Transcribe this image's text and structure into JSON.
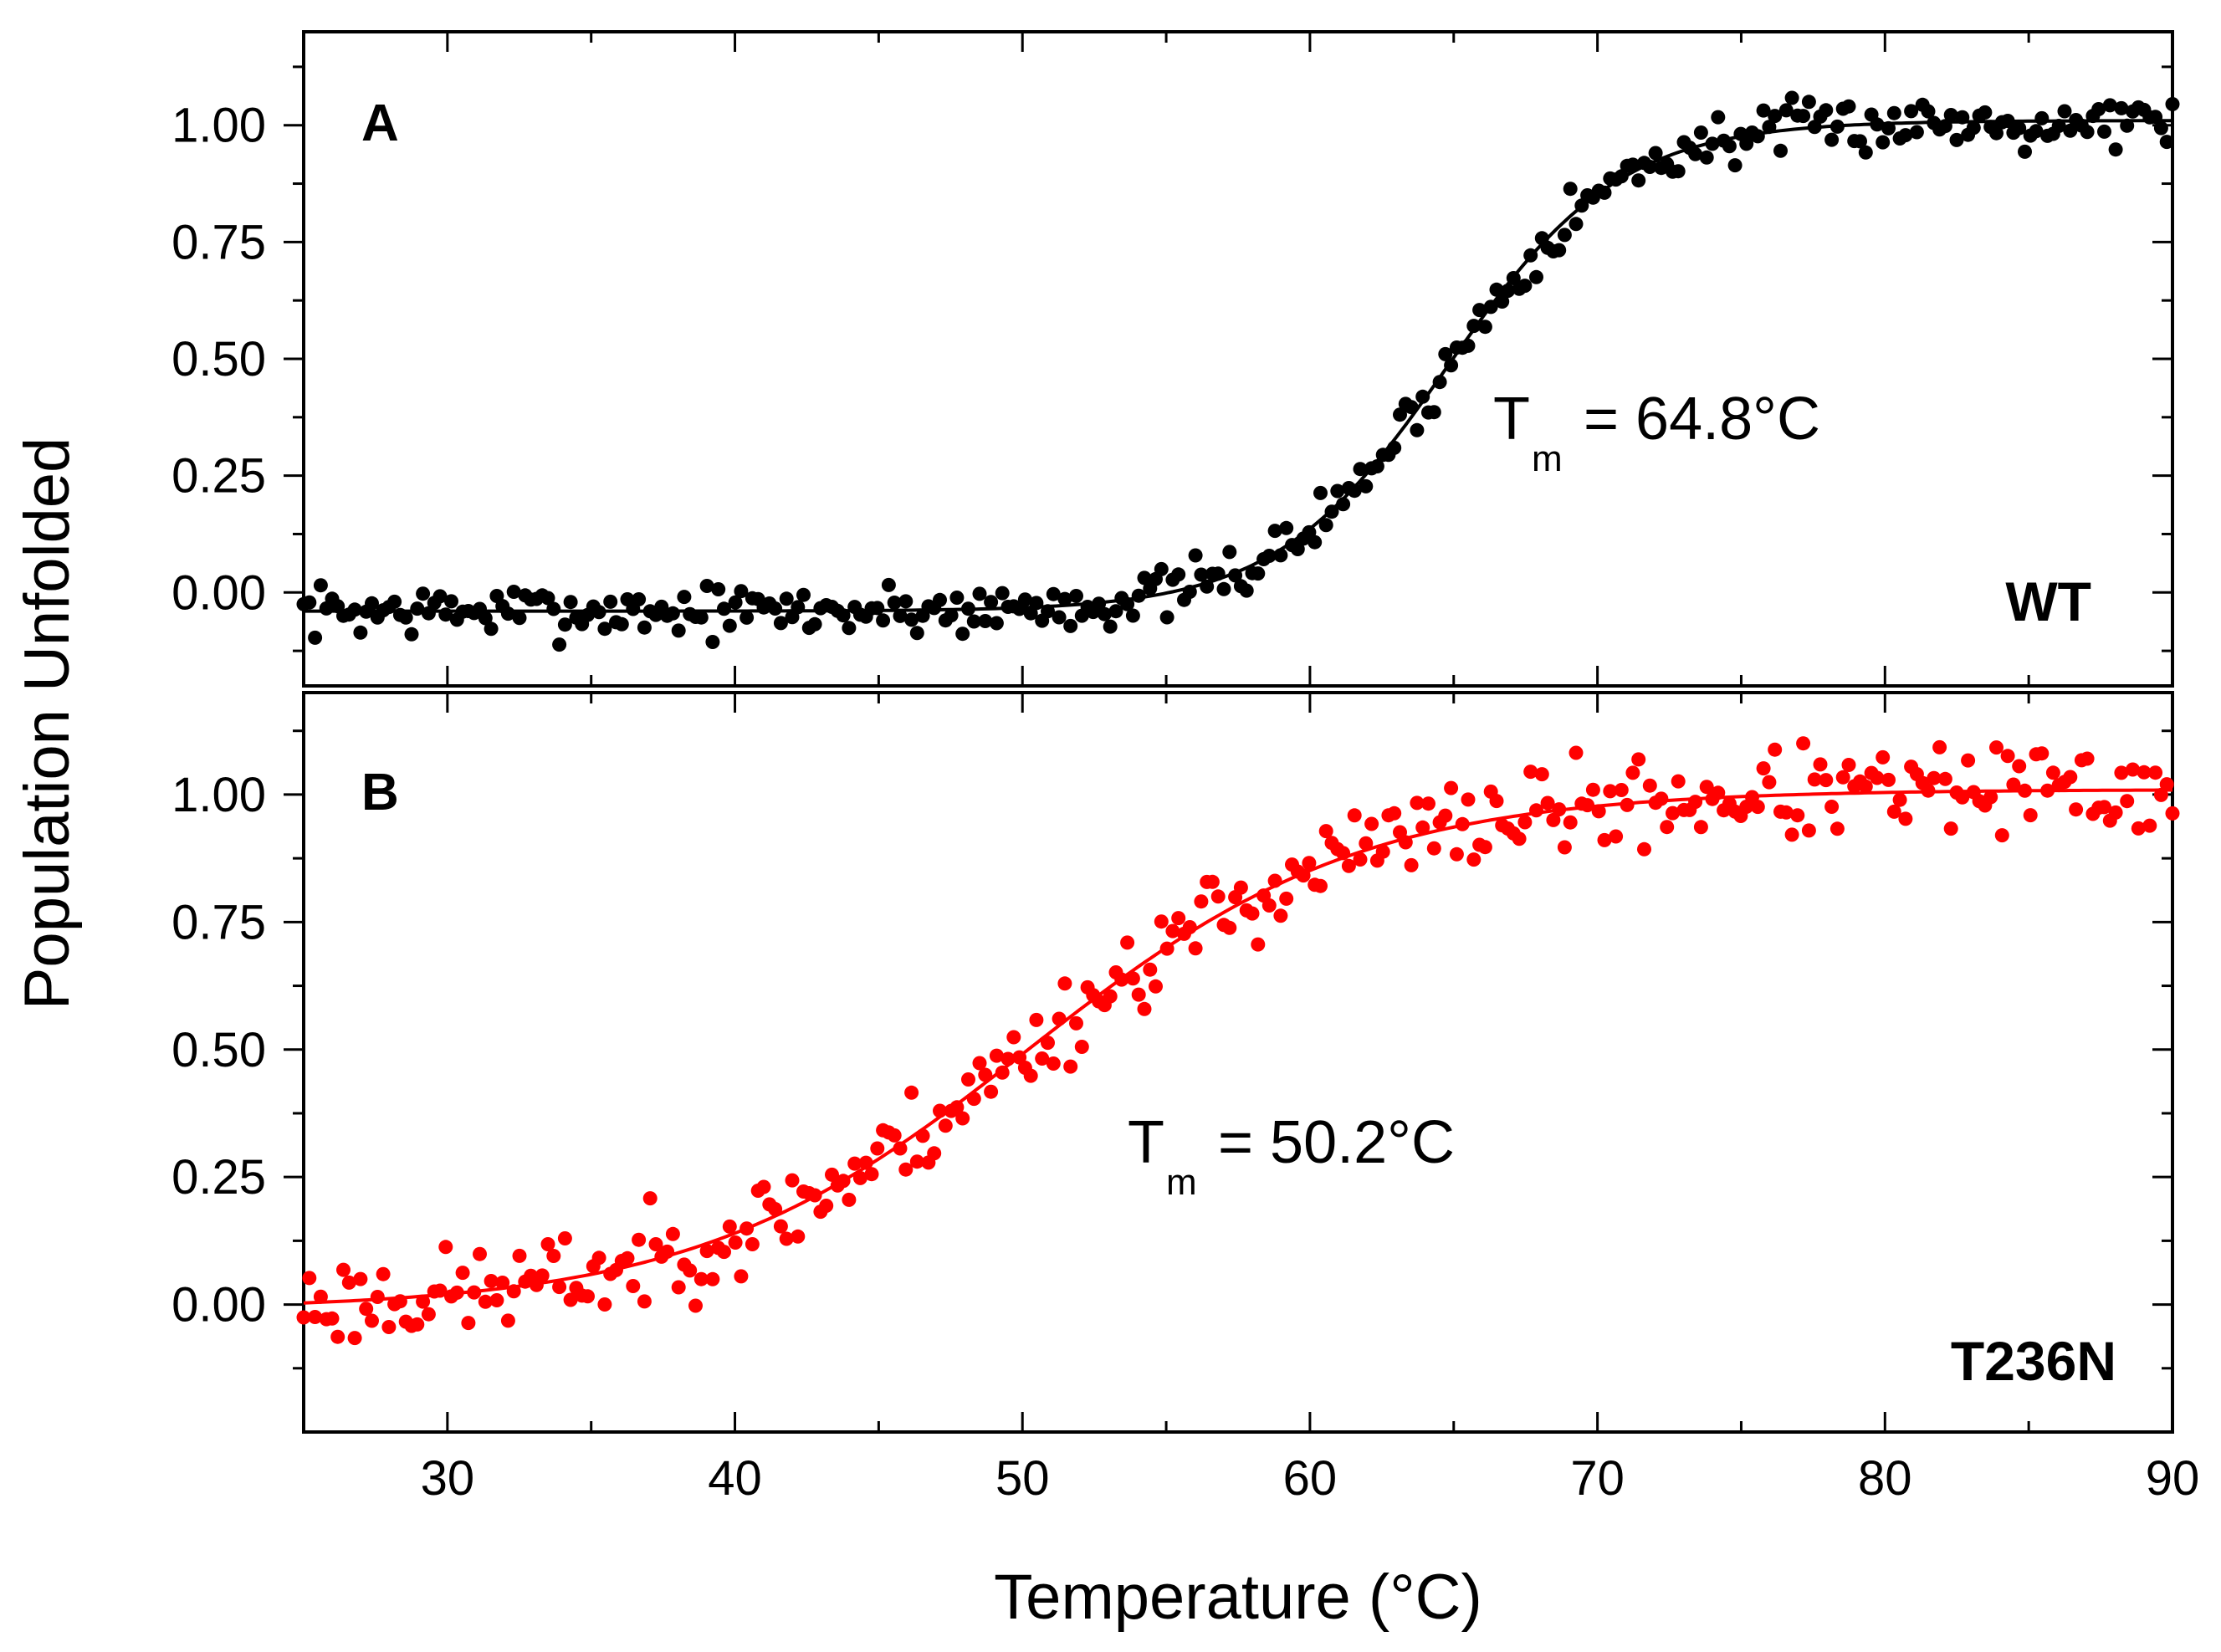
{
  "figure": {
    "ylabel": "Population Unfolded",
    "xlabel": "Temperature (°C)"
  },
  "chart_data": [
    {
      "type": "scatter",
      "panel_letter": "A",
      "sample_label": "WT",
      "tm_symbol": "T",
      "tm_subscript": "m",
      "tm_text": "= 64.8°C",
      "tm_value": 64.8,
      "xlim": [
        25,
        90
      ],
      "ylim": [
        -0.2,
        1.2
      ],
      "x_ticks": [
        30,
        40,
        50,
        60,
        70,
        80,
        90
      ],
      "y_ticks": [
        "1.00",
        "0.75",
        "0.50",
        "0.25",
        "0.00"
      ],
      "color": "#000000",
      "fit": {
        "model": "sigmoid",
        "baseline": -0.04,
        "plateau": 1.01,
        "midpoint": 64.8,
        "slope": 3.0
      },
      "points": {
        "count": 330,
        "x_start": 25,
        "x_end": 90,
        "noise": 0.035,
        "seed": 7
      }
    },
    {
      "type": "scatter",
      "panel_letter": "B",
      "sample_label": "T236N",
      "tm_symbol": "T",
      "tm_subscript": "m",
      "tm_text": "= 50.2°C",
      "tm_value": 50.2,
      "xlim": [
        25,
        90
      ],
      "ylim": [
        -0.25,
        1.2
      ],
      "x_ticks": [
        30,
        40,
        50,
        60,
        70,
        80,
        90
      ],
      "x_tick_labels": [
        "30",
        "40",
        "50",
        "60",
        "70",
        "80",
        "90"
      ],
      "y_ticks": [
        "1.00",
        "0.75",
        "0.50",
        "0.25",
        "0.00"
      ],
      "color": "#ff0000",
      "fit": {
        "model": "sigmoid",
        "baseline": -0.01,
        "plateau": 1.01,
        "midpoint": 50.2,
        "slope": 5.8
      },
      "points": {
        "count": 330,
        "x_start": 25,
        "x_end": 90,
        "noise": 0.055,
        "seed": 23
      }
    }
  ]
}
